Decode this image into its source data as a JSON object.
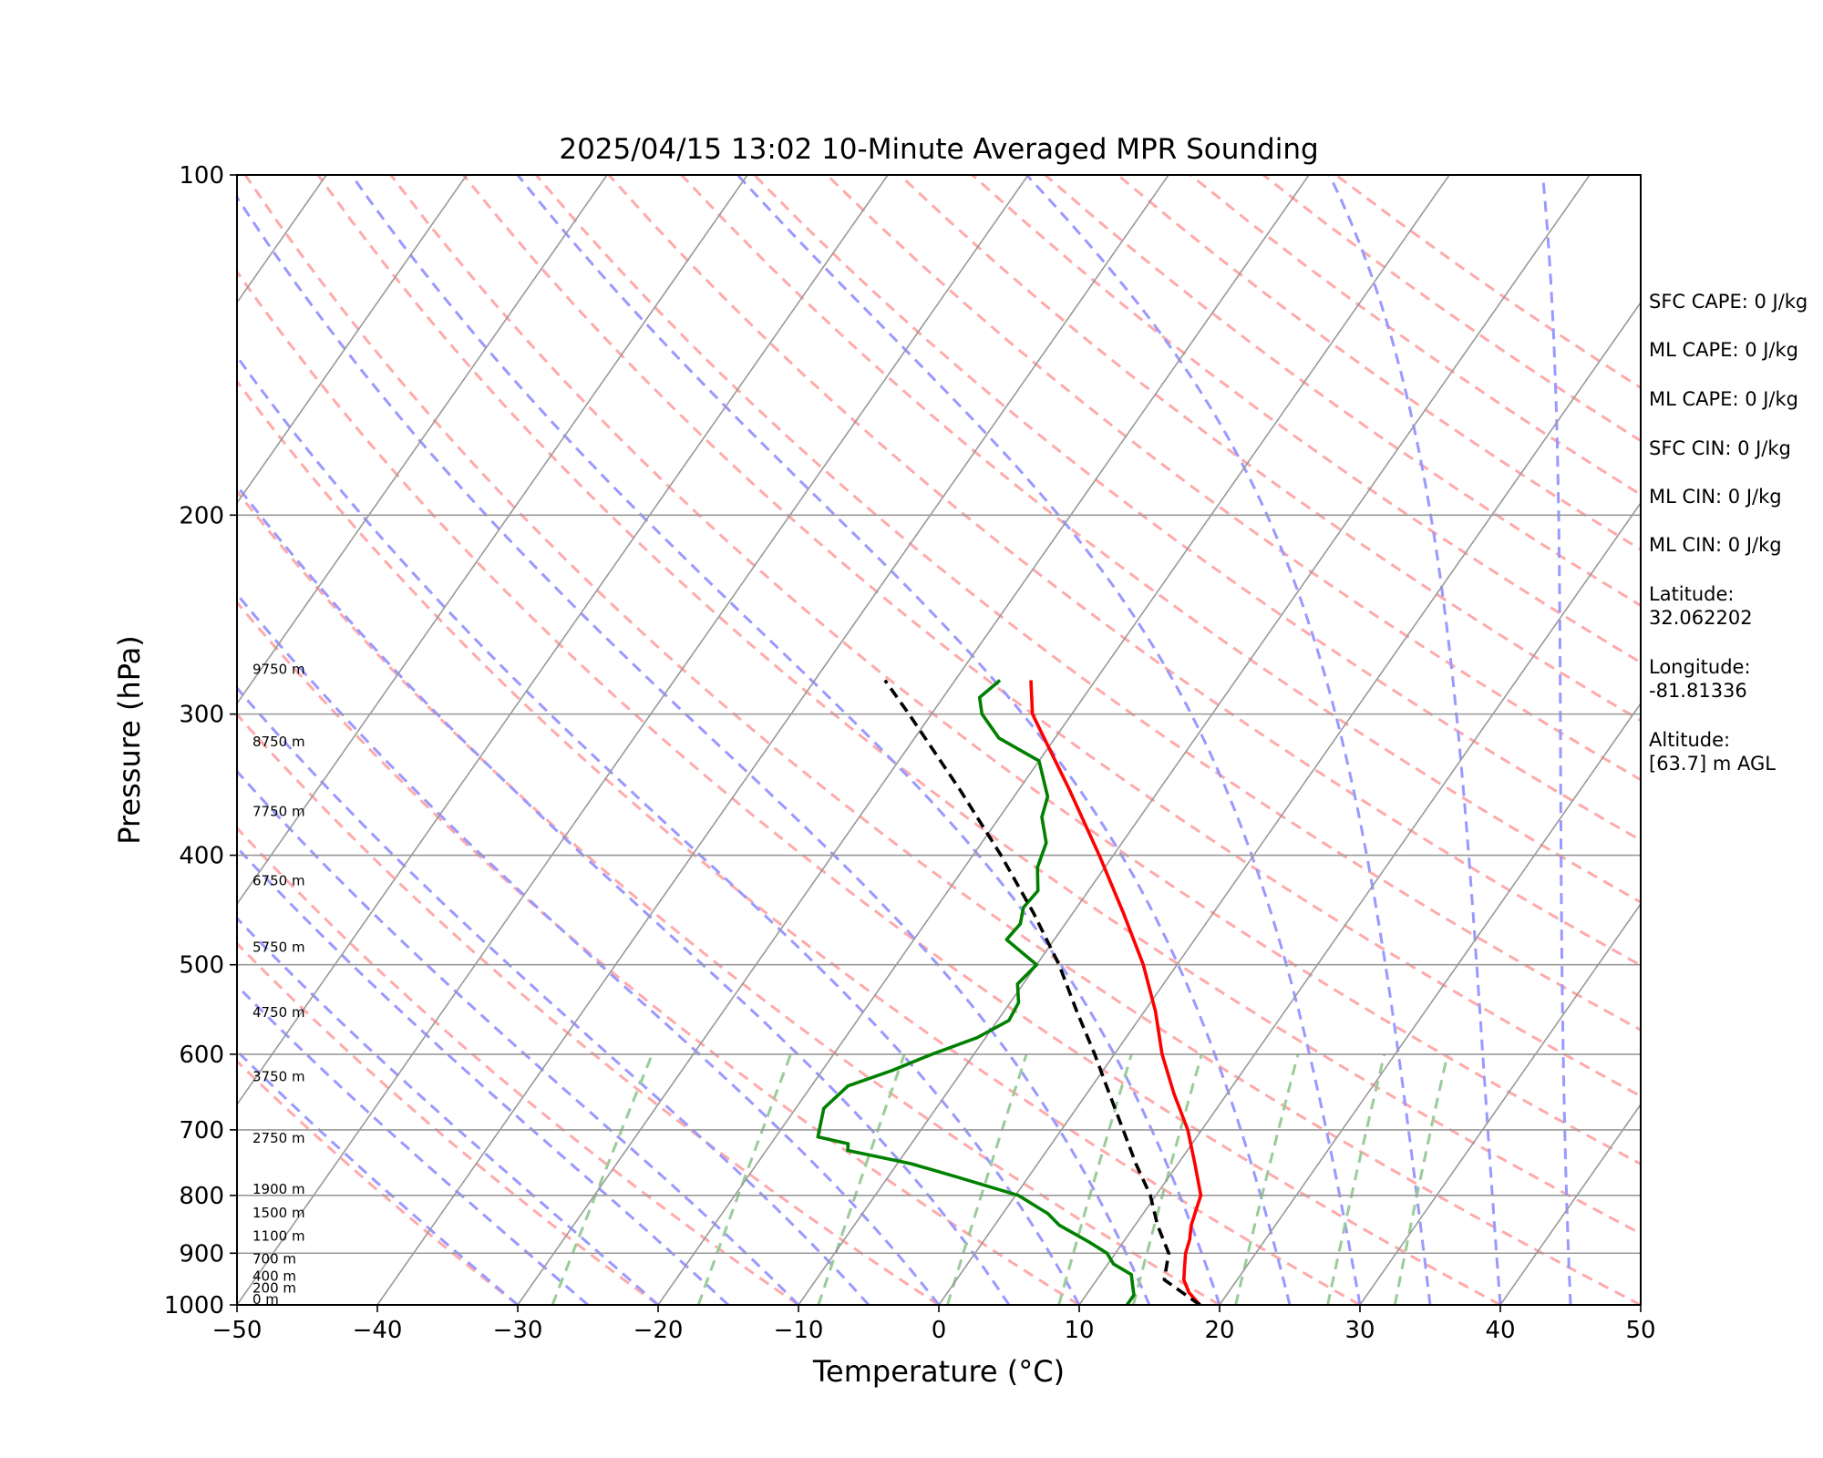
{
  "chart_data": {
    "type": "skew-t",
    "title": "2025/04/15 13:02 10-Minute Averaged MPR Sounding",
    "xlabel": "Temperature (°C)",
    "ylabel": "Pressure (hPa)",
    "xlim": [
      -50,
      50
    ],
    "ylim": [
      1000,
      100
    ],
    "y_scale": "log",
    "x_ticks": [
      -50,
      -40,
      -30,
      -20,
      -10,
      0,
      10,
      20,
      30,
      40,
      50
    ],
    "x_tick_labels": [
      "−50",
      "−40",
      "−30",
      "−20",
      "−10",
      "0",
      "10",
      "20",
      "30",
      "40",
      "50"
    ],
    "y_ticks": [
      1000,
      900,
      800,
      700,
      600,
      500,
      400,
      300,
      200,
      100
    ],
    "y_tick_labels": [
      "1000",
      "900",
      "800",
      "700",
      "600",
      "500",
      "400",
      "300",
      "200",
      "100"
    ],
    "grid": true,
    "series": [
      {
        "role": "temperature",
        "color": "#ff0000",
        "points": [
          [
            1000,
            18.6
          ],
          [
            975,
            17.2
          ],
          [
            950,
            16.2
          ],
          [
            925,
            15.6
          ],
          [
            900,
            15.0
          ],
          [
            875,
            14.6
          ],
          [
            850,
            14.0
          ],
          [
            825,
            13.6
          ],
          [
            800,
            13.2
          ],
          [
            750,
            11.2
          ],
          [
            700,
            9.0
          ],
          [
            650,
            6.2
          ],
          [
            600,
            3.4
          ],
          [
            550,
            0.8
          ],
          [
            500,
            -2.4
          ],
          [
            450,
            -6.4
          ],
          [
            400,
            -11.0
          ],
          [
            350,
            -16.4
          ],
          [
            300,
            -22.8
          ],
          [
            280,
            -24.6
          ]
        ]
      },
      {
        "role": "dewpoint",
        "color": "#008000",
        "points": [
          [
            1000,
            13.4
          ],
          [
            980,
            13.4
          ],
          [
            960,
            12.8
          ],
          [
            940,
            12.2
          ],
          [
            920,
            10.4
          ],
          [
            900,
            9.4
          ],
          [
            880,
            7.6
          ],
          [
            850,
            4.6
          ],
          [
            830,
            3.2
          ],
          [
            800,
            0.2
          ],
          [
            770,
            -5.2
          ],
          [
            750,
            -9.0
          ],
          [
            730,
            -14.2
          ],
          [
            720,
            -14.5
          ],
          [
            710,
            -17.0
          ],
          [
            670,
            -18.0
          ],
          [
            640,
            -17.4
          ],
          [
            620,
            -15.0
          ],
          [
            600,
            -13.0
          ],
          [
            580,
            -10.6
          ],
          [
            560,
            -9.2
          ],
          [
            540,
            -9.4
          ],
          [
            520,
            -10.4
          ],
          [
            500,
            -10.0
          ],
          [
            475,
            -13.4
          ],
          [
            460,
            -13.2
          ],
          [
            445,
            -13.8
          ],
          [
            430,
            -13.6
          ],
          [
            410,
            -14.8
          ],
          [
            390,
            -15.4
          ],
          [
            370,
            -17.0
          ],
          [
            355,
            -17.6
          ],
          [
            330,
            -20.0
          ],
          [
            315,
            -24.0
          ],
          [
            300,
            -26.4
          ],
          [
            290,
            -27.4
          ],
          [
            280,
            -26.8
          ]
        ]
      },
      {
        "role": "parcel",
        "color": "#000000",
        "dashed": true,
        "points": [
          [
            1000,
            18.6
          ],
          [
            950,
            14.8
          ],
          [
            900,
            13.8
          ],
          [
            850,
            11.6
          ],
          [
            800,
            9.6
          ],
          [
            750,
            7.0
          ],
          [
            700,
            4.4
          ],
          [
            650,
            1.6
          ],
          [
            600,
            -1.4
          ],
          [
            550,
            -4.8
          ],
          [
            500,
            -8.4
          ],
          [
            450,
            -12.8
          ],
          [
            400,
            -18.0
          ],
          [
            350,
            -24.2
          ],
          [
            300,
            -31.6
          ],
          [
            280,
            -35.0
          ]
        ]
      }
    ],
    "reference_lines": {
      "isotherms_color": "#999999",
      "dry_adiabats_color": "#ffaaaa",
      "moist_adiabats_color": "#9999ff",
      "mixing_ratio_color": "#99cc99"
    },
    "height_labels": [
      {
        "text": "0 m",
        "p": 1000
      },
      {
        "text": "200 m",
        "p": 977
      },
      {
        "text": "400 m",
        "p": 954
      },
      {
        "text": "700 m",
        "p": 921
      },
      {
        "text": "1100 m",
        "p": 879
      },
      {
        "text": "1500 m",
        "p": 838
      },
      {
        "text": "1900 m",
        "p": 799
      },
      {
        "text": "2750 m",
        "p": 720
      },
      {
        "text": "3750 m",
        "p": 635
      },
      {
        "text": "4750 m",
        "p": 557
      },
      {
        "text": "5750 m",
        "p": 488
      },
      {
        "text": "6750 m",
        "p": 426
      },
      {
        "text": "7750 m",
        "p": 370
      },
      {
        "text": "8750 m",
        "p": 321
      },
      {
        "text": "9750 m",
        "p": 277
      }
    ],
    "annotations": [
      "SFC CAPE: 0 J/kg",
      "ML CAPE: 0 J/kg",
      "ML CAPE: 0 J/kg",
      "SFC CIN: 0 J/kg",
      "ML CIN: 0 J/kg",
      "ML CIN: 0 J/kg",
      "Latitude:\n32.062202",
      "Longitude:\n-81.81336",
      "Altitude:\n[63.7] m AGL"
    ]
  }
}
